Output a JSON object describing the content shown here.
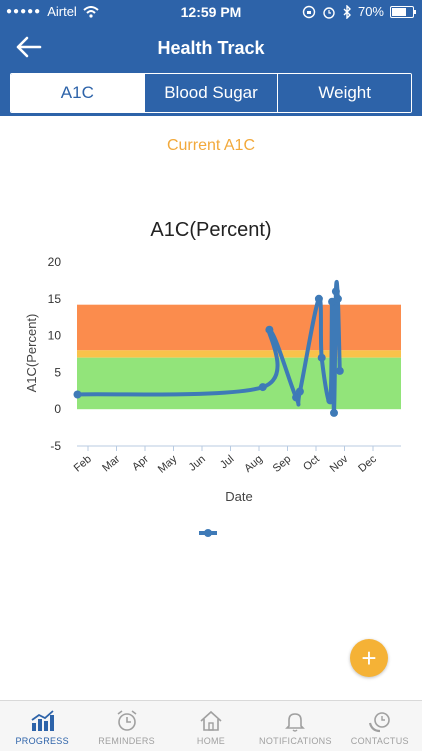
{
  "status": {
    "carrier": "Airtel",
    "time": "12:59 PM",
    "battery": "70%",
    "battery_level": 0.7
  },
  "header": {
    "title": "Health Track"
  },
  "tabs": [
    {
      "label": "A1C"
    },
    {
      "label": "Blood Sugar"
    },
    {
      "label": "Weight"
    }
  ],
  "subtitle": "Current A1C",
  "chart_data": {
    "type": "line",
    "title": "A1C(Percent)",
    "xlabel": "Date",
    "ylabel": "A1C(Percent)",
    "ylim": [
      -5,
      20
    ],
    "yticks": [
      20,
      15,
      10,
      5,
      0,
      -5
    ],
    "xticks": [
      "Feb",
      "Mar",
      "Apr",
      "May",
      "Jun",
      "Jul",
      "Aug",
      "Sep",
      "Oct",
      "Nov",
      "Dec"
    ],
    "bands": [
      {
        "from": 8,
        "to": 14.2,
        "color": "#fb8c4d"
      },
      {
        "from": 7,
        "to": 8,
        "color": "#f9c24a"
      },
      {
        "from": 0,
        "to": 7,
        "color": "#92e47a"
      }
    ],
    "series": [
      {
        "color": "#3e7ab7",
        "points": [
          [
            "2016-01-20",
            2
          ],
          [
            "2016-08-05",
            3
          ],
          [
            "2016-08-12",
            10.8
          ],
          [
            "2016-09-10",
            1.6
          ],
          [
            "2016-09-14",
            2.4
          ],
          [
            "2016-10-04",
            15
          ],
          [
            "2016-10-07",
            7
          ],
          [
            "2016-10-16",
            1.2
          ],
          [
            "2016-10-18",
            14.6
          ],
          [
            "2016-10-20",
            -0.5
          ],
          [
            "2016-10-22",
            16
          ],
          [
            "2016-10-24",
            15
          ],
          [
            "2016-10-26",
            5.2
          ]
        ]
      }
    ]
  },
  "fab": {
    "label": "+"
  },
  "bottom_nav": [
    {
      "label": "PROGRESS"
    },
    {
      "label": "REMINDERS"
    },
    {
      "label": "HOME"
    },
    {
      "label": "NOTIFICATIONS"
    },
    {
      "label": "CONTACTUS"
    }
  ]
}
